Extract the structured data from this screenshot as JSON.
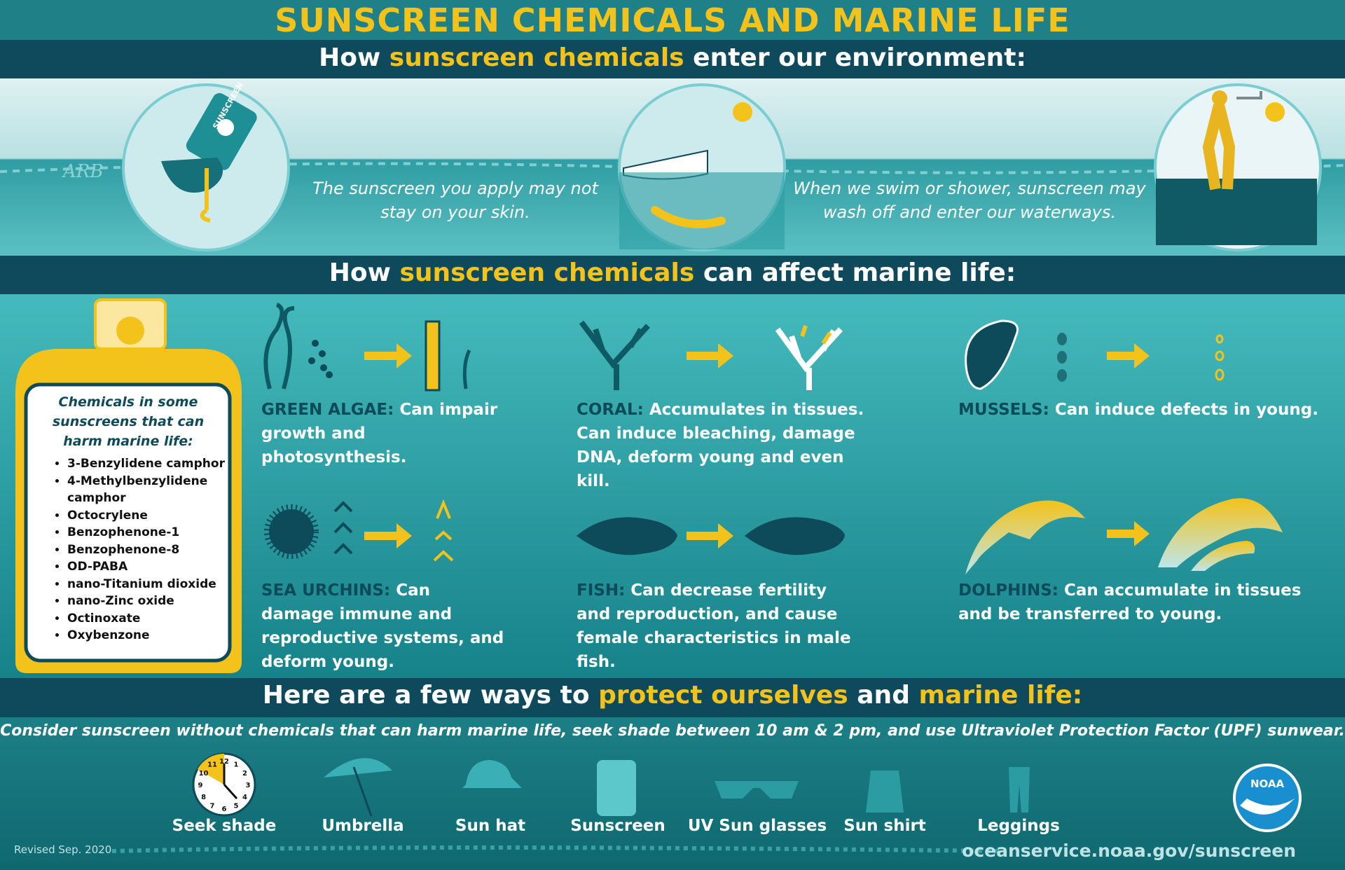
{
  "title": "SUNSCREEN CHEMICALS AND MARINE LIFE",
  "enter": {
    "heading": [
      "How",
      "sunscreen chemicals",
      "enter our environment:"
    ],
    "stamp": "ARB",
    "bottle_label": "SUNSCREEN",
    "captions": [
      "The sunscreen you apply may not stay on your skin.",
      "When we swim or shower, sunscreen may wash off and enter our waterways."
    ]
  },
  "affect": {
    "heading": [
      "How",
      "sunscreen chemicals",
      "can affect marine life:"
    ],
    "bottle": {
      "heading": "Chemicals in some sunscreens that can harm marine life:",
      "chemicals": [
        "3-Benzylidene camphor",
        "4-Methylbenzylidene camphor",
        "Octocrylene",
        "Benzophenone-1",
        "Benzophenone-8",
        "OD-PABA",
        "nano-Titanium dioxide",
        "nano-Zinc oxide",
        "Octinoxate",
        "Oxybenzone"
      ]
    },
    "organisms": [
      {
        "name": "GREEN ALGAE:",
        "effect": "Can impair growth and photosynthesis."
      },
      {
        "name": "CORAL:",
        "effect": "Accumulates in tissues. Can induce bleaching, damage DNA, deform young and even kill."
      },
      {
        "name": "MUSSELS:",
        "effect": "Can induce defects in young."
      },
      {
        "name": "SEA URCHINS:",
        "effect": "Can damage immune and reproductive systems, and deform young."
      },
      {
        "name": "FISH:",
        "effect": "Can decrease fertility and reproduction, and cause female characteristics in male fish."
      },
      {
        "name": "DOLPHINS:",
        "effect": "Can accumulate in tissues and be transferred to young."
      }
    ]
  },
  "protect": {
    "heading": [
      "Here are a few ways to",
      "protect ourselves",
      "and",
      "marine life:"
    ],
    "note": "Consider sunscreen without chemicals that can harm marine life, seek shade between 10 am & 2 pm, and use Ultraviolet Protection Factor (UPF) sunwear.",
    "clock_numbers": [
      12,
      1,
      2,
      3,
      4,
      5,
      6,
      7,
      8,
      9,
      10,
      11
    ],
    "items": [
      "Seek shade",
      "Umbrella",
      "Sun hat",
      "Sunscreen",
      "UV Sun glasses",
      "Sun shirt",
      "Leggings"
    ]
  },
  "footer": {
    "revised": "Revised Sep. 2020",
    "logo": "NOAA",
    "url": "oceanservice.noaa.gov/sunscreen"
  }
}
